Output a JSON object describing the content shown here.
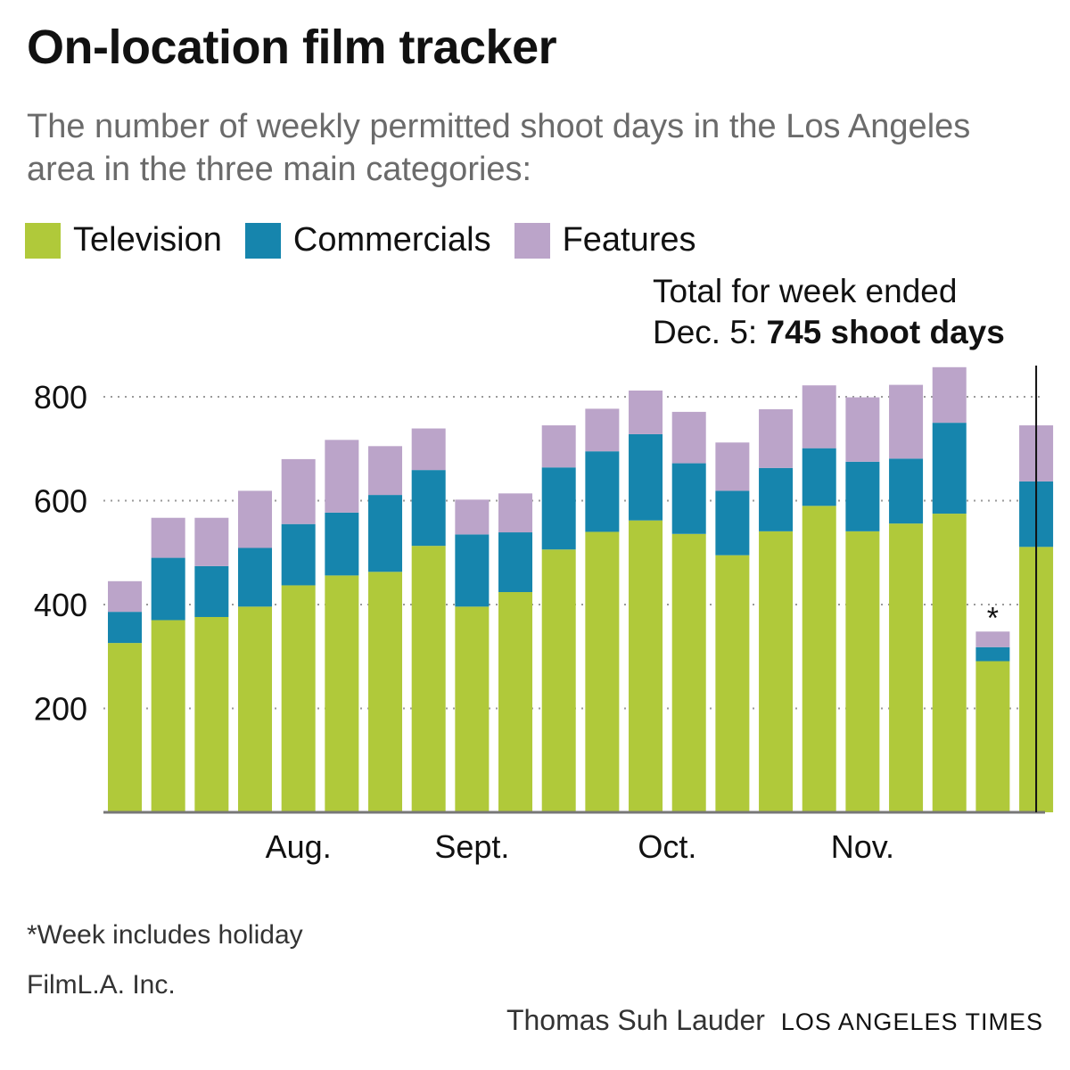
{
  "title": "On-location film tracker",
  "subtitle": "The number of weekly permitted shoot days in the Los Angeles area in the three main categories:",
  "legend": [
    {
      "label": "Television",
      "color": "#b0c93a"
    },
    {
      "label": "Commercials",
      "color": "#1685ad"
    },
    {
      "label": "Features",
      "color": "#bba4c9"
    }
  ],
  "callout": {
    "line1": "Total for week ended",
    "line2_prefix": "Dec. 5: ",
    "line2_bold": "745 shoot days"
  },
  "footnote": "*Week includes holiday",
  "source": "FilmL.A. Inc.",
  "credit": {
    "author": "Thomas Suh Lauder",
    "publication": "LOS ANGELES TIMES"
  },
  "chart_data": {
    "type": "bar",
    "stacked": true,
    "ylim": [
      0,
      860
    ],
    "yticks": [
      200,
      400,
      600,
      800
    ],
    "grid": true,
    "legend_position": "top-left",
    "month_labels": [
      {
        "label": "Aug.",
        "index": 4
      },
      {
        "label": "Sept.",
        "index": 8
      },
      {
        "label": "Oct.",
        "index": 12.5
      },
      {
        "label": "Nov.",
        "index": 17
      }
    ],
    "holiday_marker": {
      "index": 20,
      "symbol": "*"
    },
    "highlight_index": 21,
    "series": [
      {
        "name": "Television",
        "color": "#b0c93a",
        "values": [
          326,
          370,
          376,
          396,
          437,
          456,
          463,
          513,
          396,
          424,
          506,
          540,
          562,
          536,
          495,
          541,
          590,
          541,
          556,
          575,
          291,
          511
        ]
      },
      {
        "name": "Commercials",
        "color": "#1685ad",
        "values": [
          60,
          120,
          98,
          113,
          118,
          121,
          148,
          146,
          139,
          115,
          158,
          155,
          166,
          136,
          124,
          122,
          111,
          134,
          125,
          175,
          27,
          126
        ]
      },
      {
        "name": "Features",
        "color": "#bba4c9",
        "values": [
          59,
          77,
          93,
          110,
          125,
          140,
          94,
          80,
          67,
          75,
          81,
          82,
          84,
          99,
          93,
          113,
          121,
          124,
          142,
          107,
          30,
          108
        ]
      }
    ]
  }
}
